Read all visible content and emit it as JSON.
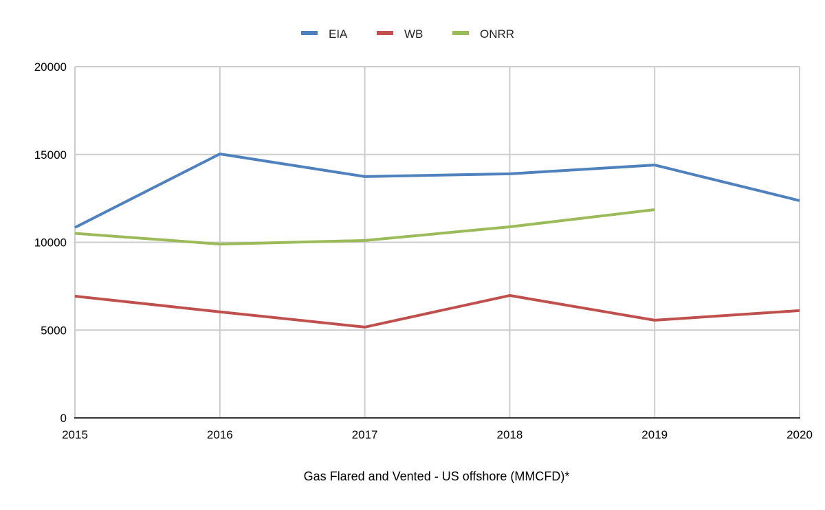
{
  "chart_data": {
    "type": "line",
    "title": "",
    "xlabel": "Gas Flared and Vented - US offshore (MMCFD)*",
    "ylabel": "",
    "x": [
      2015,
      2016,
      2017,
      2018,
      2019,
      2020
    ],
    "x_tick_labels": [
      "2015",
      "2016",
      "2017",
      "2018",
      "2019",
      "2020"
    ],
    "xlim": [
      2015,
      2020
    ],
    "ylim": [
      0,
      20000
    ],
    "y_ticks": [
      0,
      5000,
      10000,
      15000,
      20000
    ],
    "y_tick_labels": [
      "0",
      "5000",
      "10000",
      "15000",
      "20000"
    ],
    "grid": true,
    "legend_position": "top-center",
    "series": [
      {
        "name": "EIA",
        "color": "#4f81bd",
        "values": [
          10840,
          15030,
          13740,
          13900,
          14400,
          12370
        ]
      },
      {
        "name": "WB",
        "color": "#c0504d",
        "values": [
          6930,
          6040,
          5170,
          6970,
          5560,
          6110
        ]
      },
      {
        "name": "ONRR",
        "color": "#9bbb59",
        "values": [
          10510,
          9900,
          10100,
          10880,
          11860,
          null
        ]
      }
    ]
  }
}
